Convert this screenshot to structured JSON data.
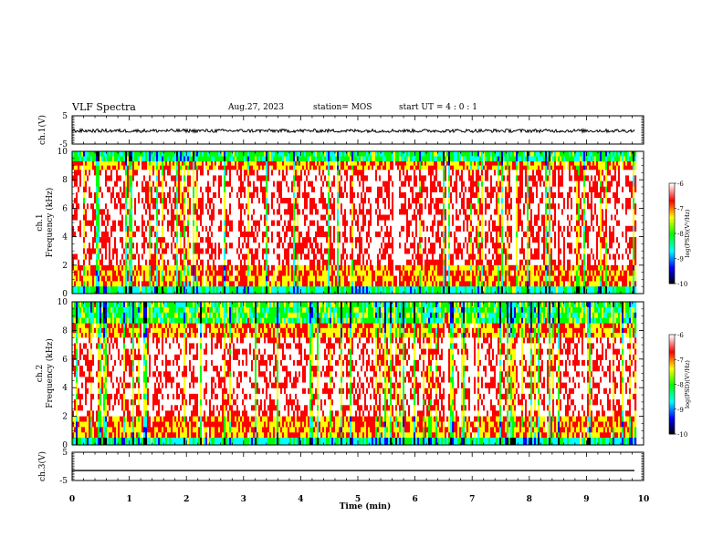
{
  "header": {
    "title": "VLF Spectra",
    "date": "Aug.27, 2023",
    "station": "station= MOS",
    "start": "start  UT =   4 : 0  : 1"
  },
  "chart_data": [
    {
      "type": "line",
      "panel": "ch1-waveform",
      "ylabel": "ch.1(V)",
      "yticks": [
        "5",
        "-5"
      ],
      "ylim": [
        -5,
        5
      ],
      "xlim": [
        0,
        10
      ],
      "mean": -0.3,
      "noise_amplitude": 0.6,
      "x_end": 9.85
    },
    {
      "type": "heatmap",
      "panel": "ch1-spectrogram",
      "ylabel_line1": "ch.1",
      "ylabel_line2": "Frequency (kHz)",
      "yticks": [
        "10",
        "8",
        "6",
        "4",
        "2",
        "0"
      ],
      "ylim": [
        0,
        10
      ],
      "xlim": [
        0,
        10
      ],
      "x_end": 9.85,
      "colorbar": {
        "label": "log(PSD)(V²/Hz)",
        "ticks": [
          "-6",
          "-7",
          "-8",
          "-9",
          "-10"
        ],
        "range": [
          -10,
          -6
        ],
        "colors": [
          "#000000",
          "#0000ff",
          "#00ffff",
          "#00ff00",
          "#ffff00",
          "#ff0000",
          "#ffffff"
        ]
      },
      "bands_khz": [
        {
          "from": 9.3,
          "to": 10,
          "level": -8.2
        },
        {
          "from": 8.7,
          "to": 9.3,
          "level": -7.0
        },
        {
          "from": 2.0,
          "to": 8.7,
          "level": -6.3
        },
        {
          "from": 0.5,
          "to": 2.0,
          "level": -7.0
        },
        {
          "from": 0.0,
          "to": 0.5,
          "level": -8.5
        }
      ]
    },
    {
      "type": "heatmap",
      "panel": "ch2-spectrogram",
      "ylabel_line1": "ch.2",
      "ylabel_line2": "Frequency (kHz)",
      "yticks": [
        "10",
        "8",
        "6",
        "4",
        "2",
        "0"
      ],
      "ylim": [
        0,
        10
      ],
      "xlim": [
        0,
        10
      ],
      "x_end": 9.85,
      "colorbar": {
        "label": "log(PSD)(V²/Hz)",
        "ticks": [
          "-6",
          "-7",
          "-8",
          "-9",
          "-10"
        ],
        "range": [
          -10,
          -6
        ],
        "colors": [
          "#000000",
          "#0000ff",
          "#00ffff",
          "#00ff00",
          "#ffff00",
          "#ff0000",
          "#ffffff"
        ]
      },
      "bands_khz": [
        {
          "from": 8.5,
          "to": 10,
          "level": -8.0
        },
        {
          "from": 7.5,
          "to": 8.5,
          "level": -7.0
        },
        {
          "from": 2.0,
          "to": 7.5,
          "level": -6.2
        },
        {
          "from": 0.5,
          "to": 2.0,
          "level": -7.0
        },
        {
          "from": 0.0,
          "to": 0.5,
          "level": -8.5
        }
      ]
    },
    {
      "type": "line",
      "panel": "ch3-waveform",
      "ylabel": "ch.3(V)",
      "yticks": [
        "5",
        "-5"
      ],
      "ylim": [
        -5,
        5
      ],
      "xlim": [
        0,
        10
      ],
      "mean": -1.5,
      "noise_amplitude": 0.0,
      "x_end": 9.85
    }
  ],
  "xaxis": {
    "label": "Time (min)",
    "ticks": [
      "0",
      "1",
      "2",
      "3",
      "4",
      "5",
      "6",
      "7",
      "8",
      "9",
      "10"
    ]
  }
}
